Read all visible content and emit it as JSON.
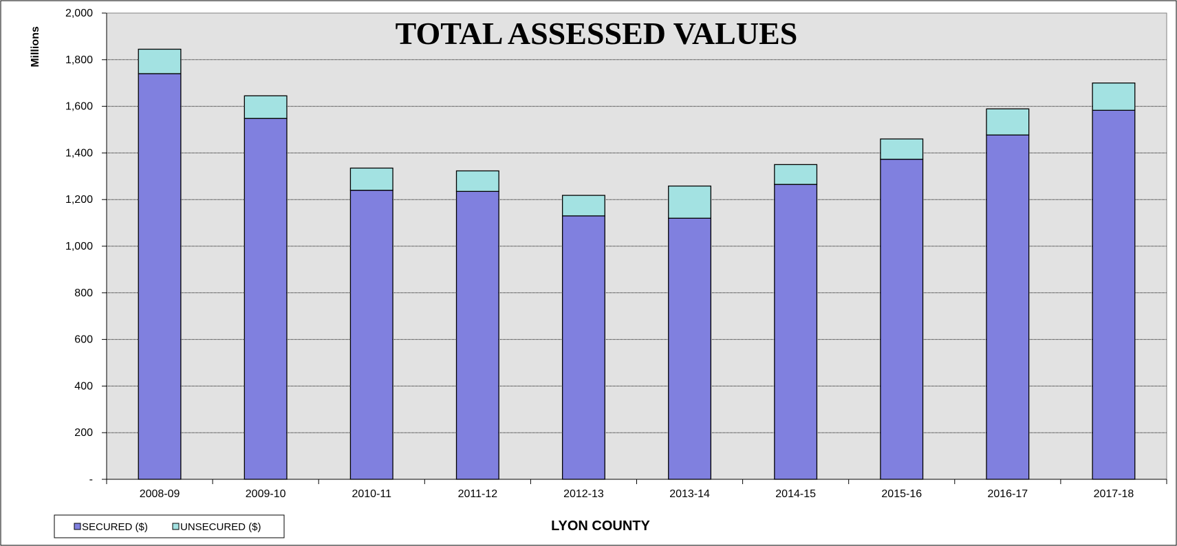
{
  "chart_data": {
    "type": "bar",
    "stacked": true,
    "title": "TOTAL ASSESSED VALUES",
    "ylabel": "Millions",
    "xlabel": "LYON COUNTY",
    "categories": [
      "2008-09",
      "2009-10",
      "2010-11",
      "2011-12",
      "2012-13",
      "2013-14",
      "2014-15",
      "2015-16",
      "2016-17",
      "2017-18"
    ],
    "series": [
      {
        "name": "SECURED ($)",
        "color": "#8080df",
        "values": [
          1740,
          1548,
          1240,
          1235,
          1130,
          1120,
          1265,
          1373,
          1477,
          1583
        ]
      },
      {
        "name": "UNSECURED ($)",
        "color": "#a3e2e2",
        "values": [
          105,
          97,
          95,
          88,
          88,
          138,
          85,
          87,
          112,
          117
        ]
      }
    ],
    "ylim": [
      0,
      2000
    ],
    "yticks": [
      0,
      200,
      400,
      600,
      800,
      1000,
      1200,
      1400,
      1600,
      1800,
      2000
    ],
    "ytick_labels": [
      "-",
      "200",
      "400",
      "600",
      "800",
      "1,000",
      "1,200",
      "1,400",
      "1,600",
      "1,800",
      "2,000"
    ],
    "grid": true,
    "plot_background": "#e2e2e2",
    "legend_position": "bottom-left"
  }
}
